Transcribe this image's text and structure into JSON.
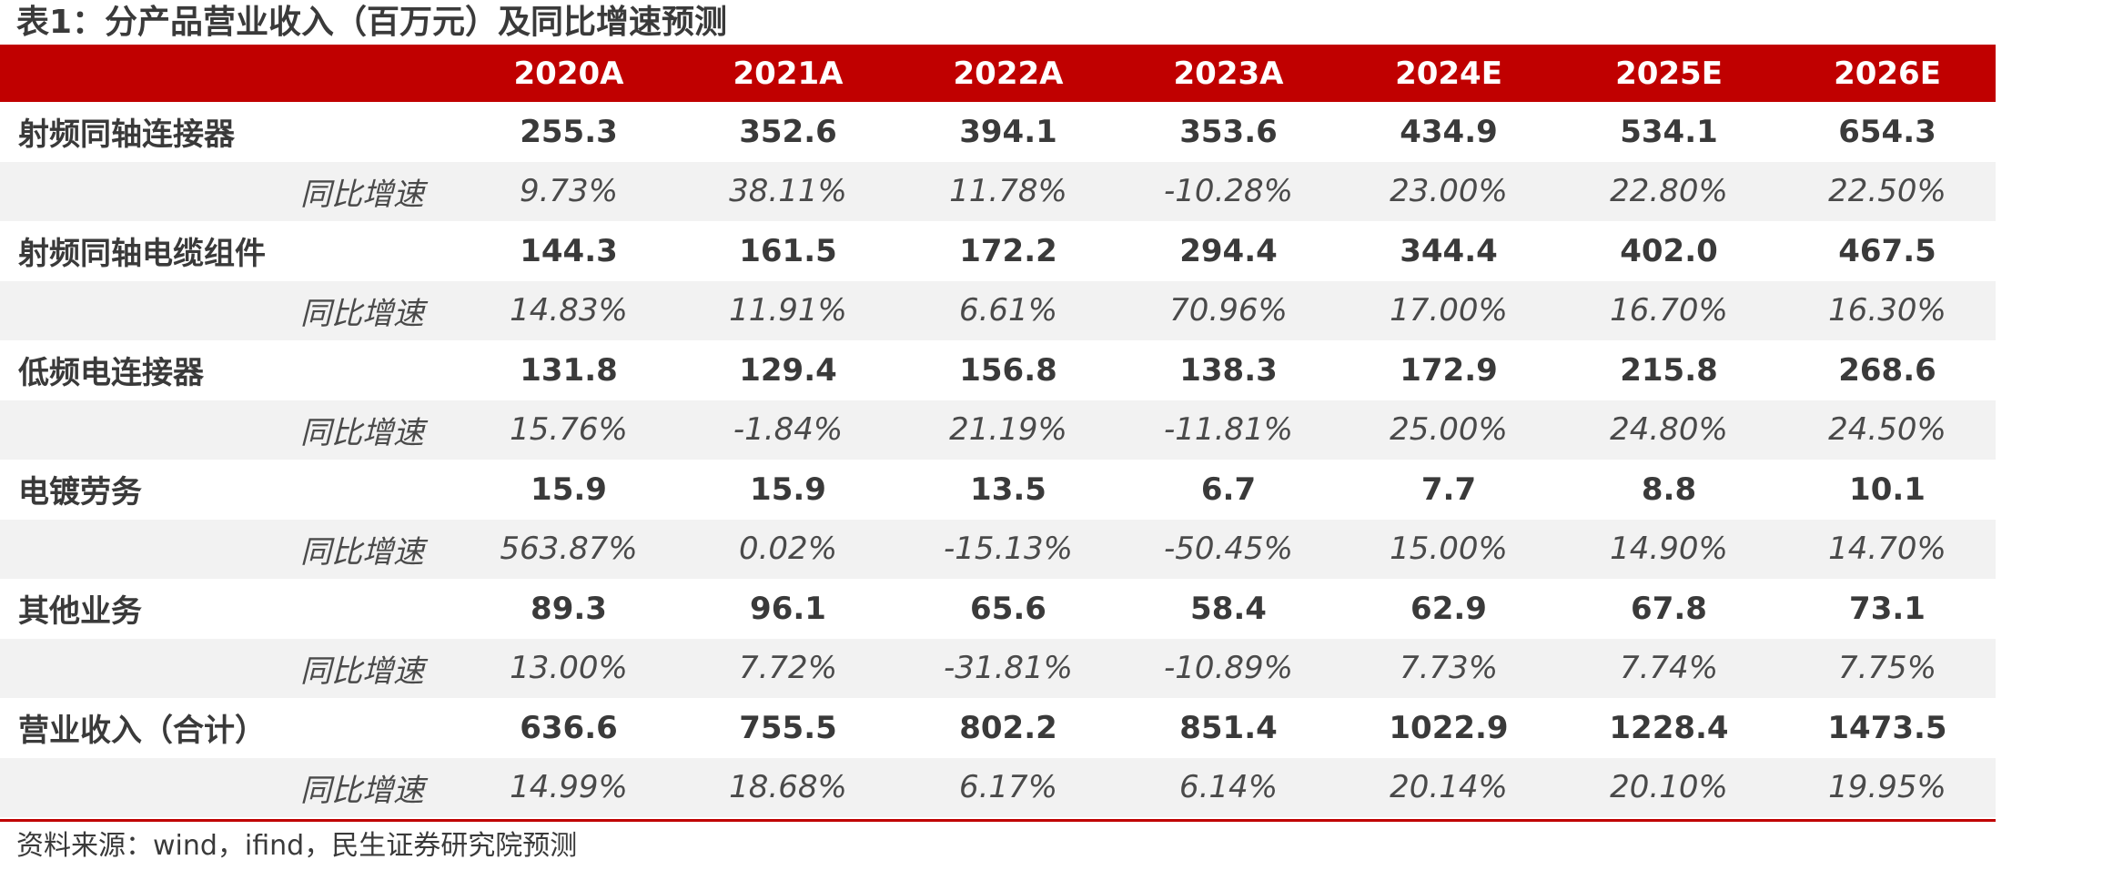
{
  "title": "表1：分产品营业收入（百万元）及同比增速预测",
  "header": {
    "columns": [
      "2020A",
      "2021A",
      "2022A",
      "2023A",
      "2024E",
      "2025E",
      "2026E"
    ]
  },
  "growth_label": "同比增速",
  "rows": [
    {
      "label": "射频同轴连接器",
      "values": [
        "255.3",
        "352.6",
        "394.1",
        "353.6",
        "434.9",
        "534.1",
        "654.3"
      ],
      "growth": [
        "9.73%",
        "38.11%",
        "11.78%",
        "-10.28%",
        "23.00%",
        "22.80%",
        "22.50%"
      ]
    },
    {
      "label": "射频同轴电缆组件",
      "values": [
        "144.3",
        "161.5",
        "172.2",
        "294.4",
        "344.4",
        "402.0",
        "467.5"
      ],
      "growth": [
        "14.83%",
        "11.91%",
        "6.61%",
        "70.96%",
        "17.00%",
        "16.70%",
        "16.30%"
      ]
    },
    {
      "label": "低频电连接器",
      "values": [
        "131.8",
        "129.4",
        "156.8",
        "138.3",
        "172.9",
        "215.8",
        "268.6"
      ],
      "growth": [
        "15.76%",
        "-1.84%",
        "21.19%",
        "-11.81%",
        "25.00%",
        "24.80%",
        "24.50%"
      ]
    },
    {
      "label": "电镀劳务",
      "values": [
        "15.9",
        "15.9",
        "13.5",
        "6.7",
        "7.7",
        "8.8",
        "10.1"
      ],
      "growth": [
        "563.87%",
        "0.02%",
        "-15.13%",
        "-50.45%",
        "15.00%",
        "14.90%",
        "14.70%"
      ]
    },
    {
      "label": "其他业务",
      "values": [
        "89.3",
        "96.1",
        "65.6",
        "58.4",
        "62.9",
        "67.8",
        "73.1"
      ],
      "growth": [
        "13.00%",
        "7.72%",
        "-31.81%",
        "-10.89%",
        "7.73%",
        "7.74%",
        "7.75%"
      ]
    },
    {
      "label": "营业收入（合计）",
      "values": [
        "636.6",
        "755.5",
        "802.2",
        "851.4",
        "1022.9",
        "1228.4",
        "1473.5"
      ],
      "growth": [
        "14.99%",
        "18.68%",
        "6.17%",
        "6.14%",
        "20.14%",
        "20.10%",
        "19.95%"
      ]
    }
  ],
  "source": "资料来源：wind，ifind，民生证券研究院预测",
  "colors": {
    "header_bg": "#c00000",
    "header_text": "#ffffff",
    "stripe_bg": "#f2f2f2",
    "text": "#3a3a3a"
  }
}
